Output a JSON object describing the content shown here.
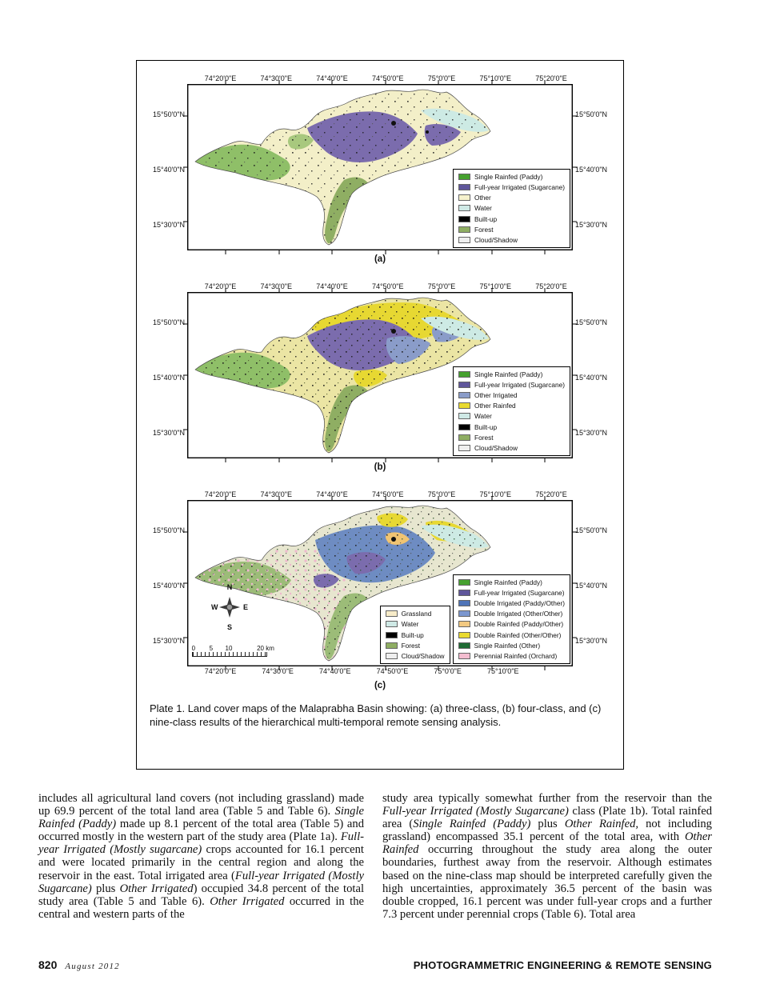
{
  "figure": {
    "caption": "Plate 1.  Land cover maps of the Malaprabha Basin showing: (a) three-class, (b) four-class, and (c) nine-class results of the hierarchical multi-temporal remote sensing analysis.",
    "axes": {
      "lon": [
        "74°20'0\"E",
        "74°30'0\"E",
        "74°40'0\"E",
        "74°50'0\"E",
        "75°0'0\"E",
        "75°10'0\"E",
        "75°20'0\"E"
      ],
      "lon_bottom": [
        "74°20'0\"E",
        "74°30'0\"E",
        "74°40'0\"E",
        "74°50'0\"E",
        "75°0'0\"E",
        "75°10'0\"E"
      ],
      "lat": [
        "15°50'0\"N",
        "15°40'0\"N",
        "15°30'0\"N"
      ]
    },
    "maps": {
      "a": {
        "label": "(a)",
        "legend": [
          {
            "label": "Single Rainfed (Paddy)",
            "color": "#46a12e"
          },
          {
            "label": "Full-year Irrigated (Sugarcane)",
            "color": "#5f569b"
          },
          {
            "label": "Other",
            "color": "#f6f2cd"
          },
          {
            "label": "Water",
            "color": "#cfe9e6"
          },
          {
            "label": "Built-up",
            "color": "#000000"
          },
          {
            "label": "Forest",
            "color": "#8fae63"
          },
          {
            "label": "Cloud/Shadow",
            "color": "#efefef"
          }
        ]
      },
      "b": {
        "label": "(b)",
        "legend": [
          {
            "label": "Single Rainfed (Paddy)",
            "color": "#46a12e"
          },
          {
            "label": "Full-year Irrigated (Sugarcane)",
            "color": "#5f569b"
          },
          {
            "label": "Other Irrigated",
            "color": "#8a9cc9"
          },
          {
            "label": "Other Rainfed",
            "color": "#e9da2f"
          },
          {
            "label": "Water",
            "color": "#cfe9e6"
          },
          {
            "label": "Built-up",
            "color": "#000000"
          },
          {
            "label": "Forest",
            "color": "#8fae63"
          },
          {
            "label": "Cloud/Shadow",
            "color": "#efefef"
          }
        ]
      },
      "c": {
        "label": "(c)",
        "legend_left": [
          {
            "label": "Grassland",
            "color": "#f7ecc9"
          },
          {
            "label": "Water",
            "color": "#cfe9e6"
          },
          {
            "label": "Built-up",
            "color": "#000000"
          },
          {
            "label": "Forest",
            "color": "#8fae63"
          },
          {
            "label": "Cloud/Shadow",
            "color": "#efefef"
          }
        ],
        "legend_right": [
          {
            "label": "Single Rainfed (Paddy)",
            "color": "#46a12e"
          },
          {
            "label": "Full-year Irrigated (Sugarcane)",
            "color": "#5f569b"
          },
          {
            "label": "Double Irrigated (Paddy/Other)",
            "color": "#4f74b8"
          },
          {
            "label": "Double Irrigated (Other/Other)",
            "color": "#7c97cf"
          },
          {
            "label": "Double Rainfed (Paddy/Other)",
            "color": "#f2c981"
          },
          {
            "label": "Double Rainfed (Other/Other)",
            "color": "#e9da2f"
          },
          {
            "label": "Single Rainfed (Other)",
            "color": "#1f6b33"
          },
          {
            "label": "Perennial Rainfed (Orchard)",
            "color": "#f4bdd0"
          }
        ],
        "compass": {
          "n": "N",
          "e": "E",
          "s": "S",
          "w": "W"
        },
        "scale_labels": [
          "0",
          "5",
          "10",
          "20 km"
        ]
      }
    }
  },
  "body": {
    "left_runs": [
      {
        "t": "includes all agricultural land covers (not including grassland) made up 69.9 percent of the total land area (Table 5 and Table 6). "
      },
      {
        "t": "Single Rainfed (Paddy)",
        "i": true
      },
      {
        "t": " made up 8.1 percent of the total area (Table 5) and occurred mostly in the western part of the study area (Plate 1a). "
      },
      {
        "t": "Full-year Irrigated (Mostly sugarcane)",
        "i": true
      },
      {
        "t": " crops accounted for 16.1 percent and were located primarily in the central region and along the reservoir in the east. Total irrigated area ("
      },
      {
        "t": "Full-year Irrigated (Mostly Sugarcane)",
        "i": true
      },
      {
        "t": " plus "
      },
      {
        "t": "Other Irrigated",
        "i": true
      },
      {
        "t": ") occupied 34.8 percent of the total study area (Table 5 and Table 6). "
      },
      {
        "t": "Other Irrigated",
        "i": true
      },
      {
        "t": " occurred in the central and western parts of the"
      }
    ],
    "right_runs": [
      {
        "t": "study area typically somewhat further from the reservoir than the "
      },
      {
        "t": "Full-year Irrigated (Mostly Sugarcane)",
        "i": true
      },
      {
        "t": " class (Plate 1b). Total rainfed area ("
      },
      {
        "t": "Single Rainfed (Paddy)",
        "i": true
      },
      {
        "t": " plus "
      },
      {
        "t": "Other Rainfed,",
        "i": true
      },
      {
        "t": " not including grassland) encompassed 35.1 percent of the total area, with "
      },
      {
        "t": "Other Rainfed",
        "i": true
      },
      {
        "t": " occurring throughout the study area along the outer boundaries, furthest away from the reservoir. Although estimates based on the nine-class map should be interpreted carefully given the high uncertainties, approximately 36.5 percent of the basin was double cropped, 16.1 percent was under full-year crops and a further 7.3 percent under perennial crops (Table 6). Total area"
      }
    ]
  },
  "footer": {
    "page_number": "820",
    "issue": "August 2012",
    "journal": "PHOTOGRAMMETRIC ENGINEERING & REMOTE SENSING"
  }
}
